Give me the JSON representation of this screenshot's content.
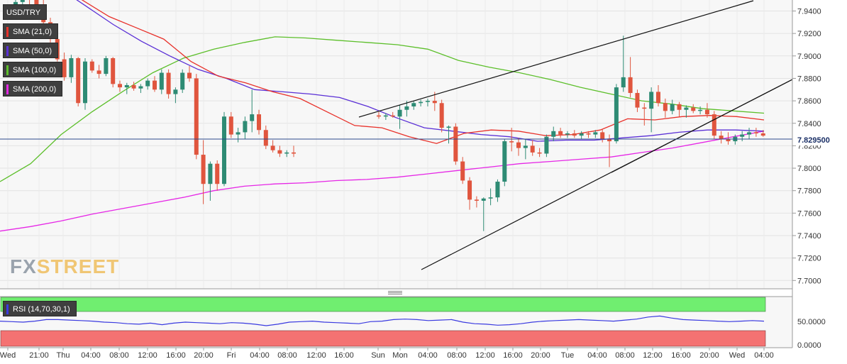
{
  "chart_data": {
    "type": "candlestick",
    "symbol": "USD/TRY",
    "last_price": "7.829500",
    "price_axis": {
      "min": 7.6926,
      "max": 7.9498,
      "ticks": [
        "7.9400",
        "7.9200",
        "7.9000",
        "7.8800",
        "7.8600",
        "7.8400",
        "7.8200",
        "7.8000",
        "7.7800",
        "7.7600",
        "7.7400",
        "7.7200",
        "7.7000"
      ]
    },
    "time_axis": {
      "labels": [
        "Wed",
        "21:00",
        "Thu",
        "04:00",
        "08:00",
        "12:00",
        "16:00",
        "20:00",
        "Fri",
        "04:00",
        "08:00",
        "12:00",
        "16:00",
        "Sun",
        "Mon",
        "04:00",
        "08:00",
        "12:00",
        "16:00",
        "20:00",
        "Tue",
        "04:00",
        "08:00",
        "12:00",
        "16:00",
        "20:00",
        "Wed",
        "04:00"
      ]
    },
    "indicators": [
      {
        "label": "SMA (21,0)",
        "color": "#e8312a"
      },
      {
        "label": "SMA (50,0)",
        "color": "#5a2fd6"
      },
      {
        "label": "SMA (100,0)",
        "color": "#5cbf2a"
      },
      {
        "label": "SMA (200,0)",
        "color": "#e627e6"
      }
    ],
    "rsi": {
      "label": "RSI (14,70,30,1)",
      "ticks": [
        "50.0000",
        "0.0000"
      ],
      "overbought": 70,
      "oversold": 30
    },
    "candles": [
      [
        7.945,
        7.953,
        7.935,
        7.948
      ],
      [
        7.948,
        7.956,
        7.94,
        7.951
      ],
      [
        7.951,
        7.958,
        7.944,
        7.95
      ],
      [
        7.95,
        7.956,
        7.942,
        7.946
      ],
      [
        7.946,
        7.95,
        7.925,
        7.93
      ],
      [
        7.93,
        7.934,
        7.912,
        7.915
      ],
      [
        7.915,
        7.918,
        7.895,
        7.897
      ],
      [
        7.897,
        7.903,
        7.878,
        7.881
      ],
      [
        7.881,
        7.901,
        7.876,
        7.898
      ],
      [
        7.898,
        7.899,
        7.855,
        7.858
      ],
      [
        7.858,
        7.898,
        7.852,
        7.895
      ],
      [
        7.895,
        7.897,
        7.885,
        7.887
      ],
      [
        7.887,
        7.892,
        7.88,
        7.884
      ],
      [
        7.884,
        7.9,
        7.882,
        7.898
      ],
      [
        7.898,
        7.899,
        7.872,
        7.875
      ],
      [
        7.875,
        7.878,
        7.868,
        7.872
      ],
      [
        7.872,
        7.876,
        7.866,
        7.874
      ],
      [
        7.874,
        7.877,
        7.869,
        7.871
      ],
      [
        7.871,
        7.875,
        7.867,
        7.873
      ],
      [
        7.873,
        7.88,
        7.87,
        7.878
      ],
      [
        7.878,
        7.882,
        7.868,
        7.87
      ],
      [
        7.87,
        7.888,
        7.866,
        7.885
      ],
      [
        7.885,
        7.888,
        7.862,
        7.866
      ],
      [
        7.866,
        7.872,
        7.858,
        7.87
      ],
      [
        7.87,
        7.888,
        7.867,
        7.885
      ],
      [
        7.885,
        7.891,
        7.877,
        7.88
      ],
      [
        7.88,
        7.884,
        7.808,
        7.812
      ],
      [
        7.812,
        7.825,
        7.768,
        7.786
      ],
      [
        7.786,
        7.806,
        7.771,
        7.804
      ],
      [
        7.804,
        7.807,
        7.78,
        7.786
      ],
      [
        7.786,
        7.85,
        7.784,
        7.846
      ],
      [
        7.846,
        7.85,
        7.827,
        7.83
      ],
      [
        7.83,
        7.836,
        7.823,
        7.832
      ],
      [
        7.832,
        7.846,
        7.826,
        7.842
      ],
      [
        7.842,
        7.87,
        7.832,
        7.848
      ],
      [
        7.848,
        7.852,
        7.83,
        7.834
      ],
      [
        7.834,
        7.838,
        7.817,
        7.82
      ],
      [
        7.82,
        7.825,
        7.814,
        7.816
      ],
      [
        7.816,
        7.82,
        7.81,
        7.813
      ],
      [
        7.813,
        7.816,
        7.81,
        7.814
      ],
      [
        7.814,
        7.82,
        7.81,
        7.813
      ],
      [
        7.847,
        7.85,
        7.844,
        7.846
      ],
      [
        7.846,
        7.849,
        7.843,
        7.847
      ],
      [
        7.847,
        7.85,
        7.845,
        7.846
      ],
      [
        7.846,
        7.856,
        7.835,
        7.852
      ],
      [
        7.852,
        7.86,
        7.846,
        7.855
      ],
      [
        7.855,
        7.86,
        7.852,
        7.858
      ],
      [
        7.858,
        7.861,
        7.855,
        7.859
      ],
      [
        7.859,
        7.862,
        7.855,
        7.86
      ],
      [
        7.86,
        7.868,
        7.851,
        7.858
      ],
      [
        7.858,
        7.861,
        7.832,
        7.836
      ],
      [
        7.836,
        7.838,
        7.822,
        7.837
      ],
      [
        7.837,
        7.84,
        7.803,
        7.806
      ],
      [
        7.806,
        7.81,
        7.786,
        7.789
      ],
      [
        7.789,
        7.792,
        7.763,
        7.772
      ],
      [
        7.772,
        7.775,
        7.765,
        7.771
      ],
      [
        7.771,
        7.774,
        7.744,
        7.773
      ],
      [
        7.773,
        7.782,
        7.767,
        7.774
      ],
      [
        7.774,
        7.79,
        7.77,
        7.788
      ],
      [
        7.788,
        7.826,
        7.784,
        7.824
      ],
      [
        7.824,
        7.836,
        7.815,
        7.823
      ],
      [
        7.823,
        7.827,
        7.811,
        7.818
      ],
      [
        7.818,
        7.826,
        7.808,
        7.82
      ],
      [
        7.82,
        7.825,
        7.811,
        7.814
      ],
      [
        7.814,
        7.818,
        7.81,
        7.813
      ],
      [
        7.813,
        7.83,
        7.81,
        7.828
      ],
      [
        7.828,
        7.837,
        7.824,
        7.833
      ],
      [
        7.833,
        7.836,
        7.827,
        7.83
      ],
      [
        7.83,
        7.833,
        7.827,
        7.831
      ],
      [
        7.831,
        7.834,
        7.827,
        7.829
      ],
      [
        7.829,
        7.833,
        7.826,
        7.831
      ],
      [
        7.831,
        7.833,
        7.827,
        7.83
      ],
      [
        7.83,
        7.834,
        7.827,
        7.832
      ],
      [
        7.832,
        7.835,
        7.823,
        7.826
      ],
      [
        7.826,
        7.83,
        7.801,
        7.824
      ],
      [
        7.824,
        7.875,
        7.822,
        7.872
      ],
      [
        7.872,
        7.918,
        7.868,
        7.881
      ],
      [
        7.881,
        7.899,
        7.863,
        7.867
      ],
      [
        7.867,
        7.87,
        7.85,
        7.854
      ],
      [
        7.854,
        7.858,
        7.838,
        7.853
      ],
      [
        7.853,
        7.872,
        7.832,
        7.868
      ],
      [
        7.868,
        7.874,
        7.855,
        7.858
      ],
      [
        7.858,
        7.862,
        7.845,
        7.851
      ],
      [
        7.851,
        7.861,
        7.848,
        7.857
      ],
      [
        7.857,
        7.859,
        7.846,
        7.852
      ],
      [
        7.852,
        7.856,
        7.845,
        7.854
      ],
      [
        7.854,
        7.857,
        7.849,
        7.851
      ],
      [
        7.851,
        7.855,
        7.848,
        7.852
      ],
      [
        7.852,
        7.858,
        7.845,
        7.848
      ],
      [
        7.848,
        7.851,
        7.826,
        7.829
      ],
      [
        7.829,
        7.833,
        7.822,
        7.826
      ],
      [
        7.826,
        7.832,
        7.821,
        7.824
      ],
      [
        7.824,
        7.83,
        7.821,
        7.828
      ],
      [
        7.828,
        7.833,
        7.824,
        7.83
      ],
      [
        7.83,
        7.836,
        7.826,
        7.832
      ],
      [
        7.832,
        7.836,
        7.828,
        7.831
      ],
      [
        7.831,
        7.834,
        7.828,
        7.829
      ]
    ],
    "sma21": [
      7.978,
      7.97,
      7.962,
      7.95,
      7.935,
      7.925,
      7.915,
      7.895,
      7.882,
      7.876,
      7.868,
      7.862,
      7.85,
      7.838,
      7.836,
      7.828,
      7.822,
      7.831,
      7.834,
      7.833,
      7.829,
      7.83,
      7.834,
      7.844,
      7.843,
      7.846,
      7.847,
      7.846,
      7.843
    ],
    "sma50": [
      7.994,
      7.98,
      7.962,
      7.945,
      7.928,
      7.913,
      7.9,
      7.888,
      7.88,
      7.87,
      7.868,
      7.866,
      7.863,
      7.855,
      7.845,
      7.836,
      7.833,
      7.83,
      7.828,
      7.824,
      7.825,
      7.825,
      7.827,
      7.829,
      7.832,
      7.834,
      7.834,
      7.833
    ],
    "sma100": [
      7.788,
      7.804,
      7.83,
      7.85,
      7.868,
      7.885,
      7.898,
      7.906,
      7.912,
      7.917,
      7.916,
      7.914,
      7.912,
      7.91,
      7.906,
      7.896,
      7.89,
      7.885,
      7.879,
      7.872,
      7.866,
      7.86,
      7.857,
      7.853,
      7.851,
      7.849
    ],
    "sma200": [
      7.744,
      7.748,
      7.753,
      7.759,
      7.764,
      7.769,
      7.774,
      7.78,
      7.784,
      7.786,
      7.787,
      7.789,
      7.79,
      7.792,
      7.795,
      7.798,
      7.801,
      7.804,
      7.806,
      7.808,
      7.81,
      7.814,
      7.818,
      7.823,
      7.828,
      7.833
    ]
  }
}
